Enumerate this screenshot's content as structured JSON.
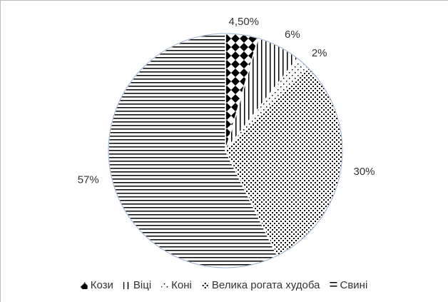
{
  "chart_data": {
    "type": "pie",
    "categories": [
      "Кози",
      "Віці",
      "Коні",
      "Велика рогата худоба",
      "Свині"
    ],
    "values": [
      4.5,
      6,
      2,
      30,
      57
    ],
    "value_labels": [
      "4,50%",
      "6%",
      "2%",
      "30%",
      "57%"
    ],
    "patterns": [
      "diamonds",
      "vertical-lines",
      "sparse-dots",
      "dense-dots",
      "horizontal-lines"
    ],
    "legend": "bottom"
  }
}
